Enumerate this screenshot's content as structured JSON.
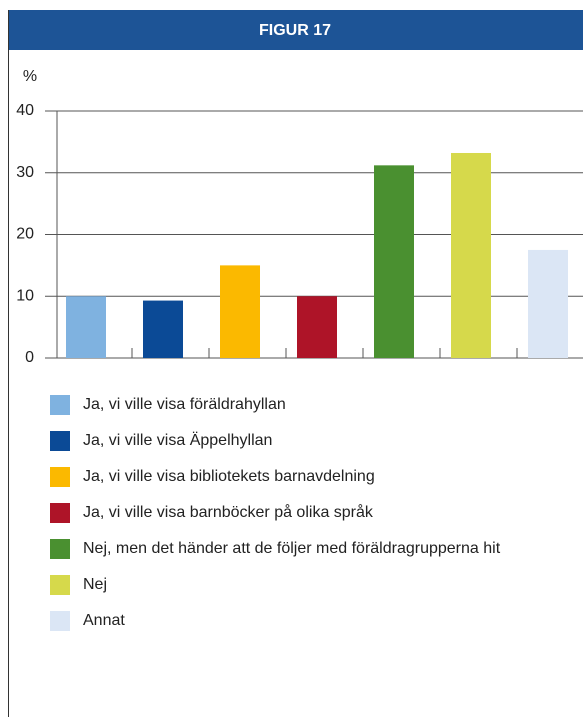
{
  "chart_data": {
    "type": "bar",
    "title": "FIGUR 17",
    "y_label": "%",
    "categories": [
      "Ja, vi ville visa föräldrahyllan",
      "Ja, vi ville visa Äppelhyllan",
      "Ja, vi ville visa bibliotekets barnavdelning",
      "Ja, vi ville visa barnböcker på olika språk",
      "Nej, men det händer att de följer med föräldragrupperna hit",
      "Nej",
      "Annat"
    ],
    "values": [
      10,
      9.3,
      15,
      10,
      31.2,
      33.2,
      17.5
    ],
    "colors": [
      "#7fb2e0",
      "#0b4a96",
      "#fbb900",
      "#ae1428",
      "#4a9030",
      "#d6d94b",
      "#dbe6f5"
    ],
    "ylim": [
      0,
      40
    ],
    "yticks": [
      0,
      10,
      20,
      30,
      40
    ],
    "grid": true
  }
}
